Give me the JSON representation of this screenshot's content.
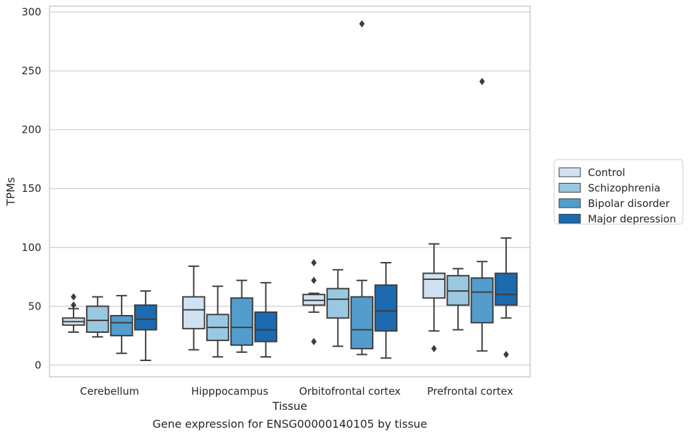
{
  "chart_data": {
    "type": "box",
    "title": "",
    "caption": "Gene expression for ENSG00000140105 by tissue",
    "xlabel": "Tissue",
    "ylabel": "TPMs",
    "ylim": [
      -10,
      305
    ],
    "yticks": [
      0,
      50,
      100,
      150,
      200,
      250,
      300
    ],
    "grid": "horizontal",
    "legend_position": "right",
    "categories": [
      "Cerebellum",
      "Hipppocampus",
      "Orbitofrontal cortex",
      "Prefrontal cortex"
    ],
    "series": [
      {
        "name": "Control",
        "color": "#d0e1f2",
        "boxes": [
          {
            "whislo": 28,
            "q1": 34,
            "med": 37,
            "q3": 40,
            "whishi": 48,
            "fliers": [
              51,
              58
            ]
          },
          {
            "whislo": 13,
            "q1": 31,
            "med": 47,
            "q3": 58,
            "whishi": 84,
            "fliers": []
          },
          {
            "whislo": 45,
            "q1": 51,
            "med": 55,
            "q3": 60,
            "whishi": 61,
            "fliers": [
              20,
              72,
              87
            ]
          },
          {
            "whislo": 29,
            "q1": 57,
            "med": 73,
            "q3": 78,
            "whishi": 103,
            "fliers": [
              14
            ]
          }
        ]
      },
      {
        "name": "Schizophrenia",
        "color": "#9ac8e0",
        "boxes": [
          {
            "whislo": 24,
            "q1": 28,
            "med": 38,
            "q3": 50,
            "whishi": 58,
            "fliers": []
          },
          {
            "whislo": 7,
            "q1": 21,
            "med": 32,
            "q3": 43,
            "whishi": 67,
            "fliers": []
          },
          {
            "whislo": 16,
            "q1": 40,
            "med": 56,
            "q3": 65,
            "whishi": 81,
            "fliers": []
          },
          {
            "whislo": 30,
            "q1": 51,
            "med": 63,
            "q3": 76,
            "whishi": 82,
            "fliers": []
          }
        ]
      },
      {
        "name": "Bipolar disorder",
        "color": "#529dcc",
        "boxes": [
          {
            "whislo": 10,
            "q1": 25,
            "med": 36,
            "q3": 42,
            "whishi": 59,
            "fliers": []
          },
          {
            "whislo": 11,
            "q1": 17,
            "med": 32,
            "q3": 57,
            "whishi": 72,
            "fliers": []
          },
          {
            "whislo": 9,
            "q1": 14,
            "med": 30,
            "q3": 58,
            "whishi": 72,
            "fliers": [
              290
            ]
          },
          {
            "whislo": 12,
            "q1": 36,
            "med": 62,
            "q3": 74,
            "whishi": 88,
            "fliers": [
              241
            ]
          }
        ]
      },
      {
        "name": "Major depression",
        "color": "#1c6aaf",
        "boxes": [
          {
            "whislo": 4,
            "q1": 30,
            "med": 39,
            "q3": 51,
            "whishi": 63,
            "fliers": []
          },
          {
            "whislo": 7,
            "q1": 20,
            "med": 30,
            "q3": 45,
            "whishi": 70,
            "fliers": []
          },
          {
            "whislo": 6,
            "q1": 29,
            "med": 46,
            "q3": 68,
            "whishi": 87,
            "fliers": []
          },
          {
            "whislo": 40,
            "q1": 51,
            "med": 60,
            "q3": 78,
            "whishi": 108,
            "fliers": [
              9
            ]
          }
        ]
      }
    ]
  }
}
